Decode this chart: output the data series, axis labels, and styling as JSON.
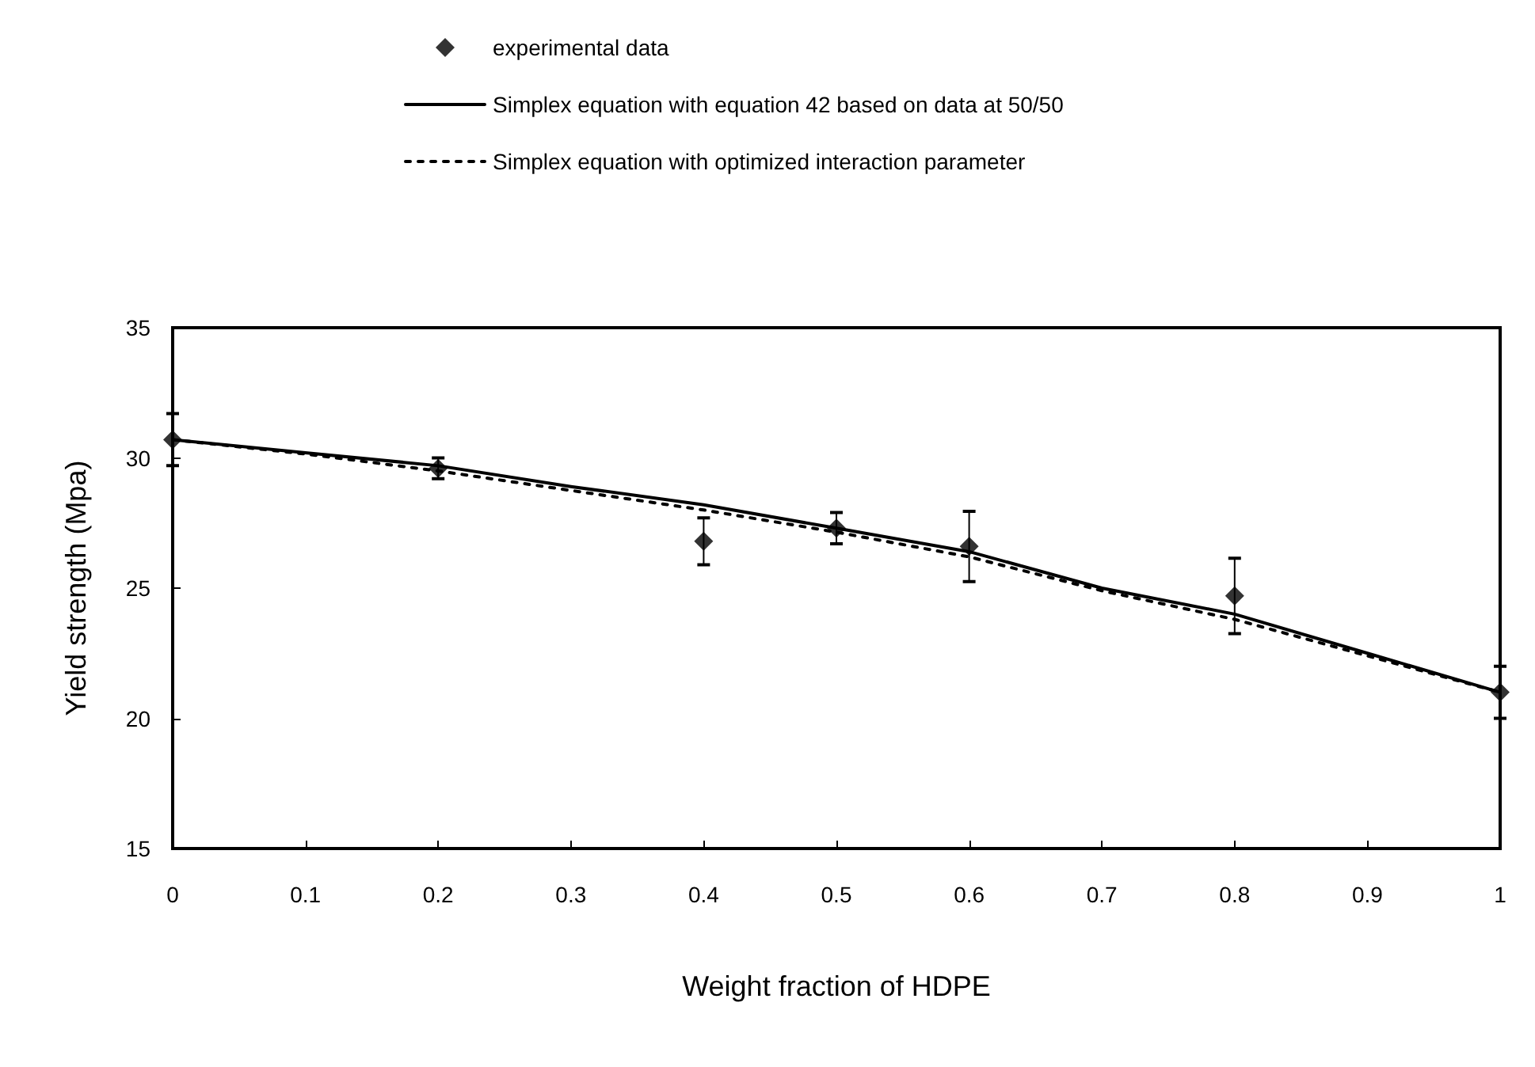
{
  "chart_data": {
    "type": "scatter",
    "xlabel": "Weight fraction of HDPE",
    "ylabel": "Yield strength (Mpa)",
    "xlim": [
      0,
      1
    ],
    "xticks": [
      0,
      0.1,
      0.2,
      0.3,
      0.4,
      0.5,
      0.6,
      0.7,
      0.8,
      0.9,
      1
    ],
    "ylim": [
      15,
      35
    ],
    "yticks": [
      15,
      20,
      25,
      30,
      35
    ],
    "grid": false,
    "legend": "top",
    "series": [
      {
        "name": "experimental data",
        "type": "scatter",
        "color": "#000000",
        "marker": "diamond",
        "x": [
          0,
          0.2,
          0.4,
          0.5,
          0.6,
          0.8,
          1
        ],
        "values": [
          30.7,
          29.6,
          26.8,
          27.3,
          26.6,
          24.7,
          21.0
        ],
        "errors": [
          1.0,
          0.4,
          0.9,
          0.6,
          1.35,
          1.45,
          1.0
        ]
      },
      {
        "name": "Simplex equation with equation 42 based on data at 50/50",
        "type": "line",
        "color": "#000000",
        "line_style": "solid",
        "x": [
          0,
          0.1,
          0.2,
          0.3,
          0.4,
          0.5,
          0.6,
          0.7,
          0.8,
          0.9,
          1
        ],
        "values": [
          30.7,
          30.2,
          29.7,
          28.9,
          28.2,
          27.3,
          26.4,
          25.0,
          24.0,
          22.5,
          21.0
        ]
      },
      {
        "name": "Simplex equation with optimized interaction parameter",
        "type": "line",
        "color": "#000000",
        "line_style": "dotted",
        "x": [
          0,
          0.1,
          0.2,
          0.3,
          0.4,
          0.5,
          0.6,
          0.7,
          0.8,
          0.9,
          1
        ],
        "values": [
          30.7,
          30.15,
          29.5,
          28.75,
          28.0,
          27.15,
          26.2,
          24.9,
          23.8,
          22.4,
          21.0
        ]
      }
    ]
  }
}
